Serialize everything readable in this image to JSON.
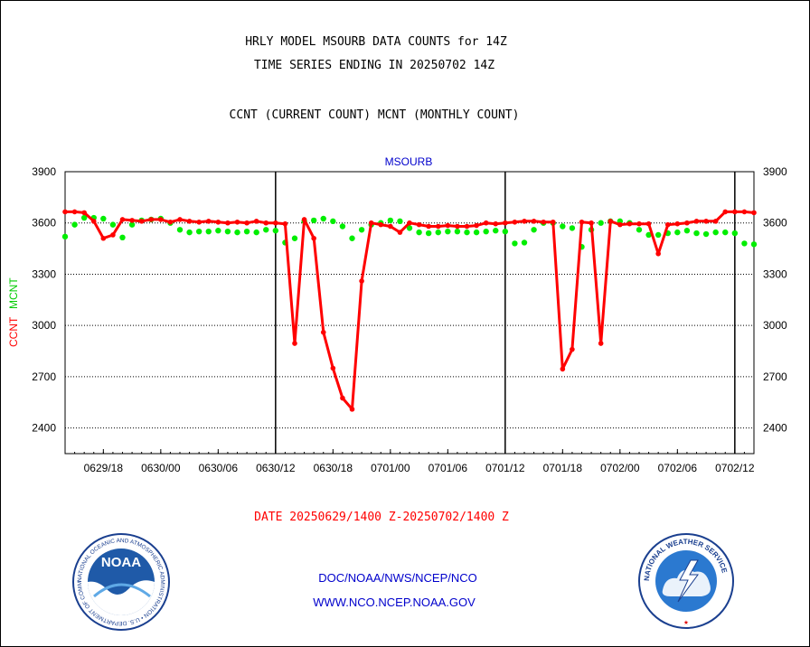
{
  "header": {
    "line1": "HRLY MODEL MSOURB DATA COUNTS for 14Z",
    "line2": "TIME SERIES ENDING IN 20250702 14Z",
    "line3": "CCNT (CURRENT COUNT) MCNT (MONTHLY COUNT)"
  },
  "footer": {
    "date_range": "DATE 20250629/1400 Z-20250702/1400 Z",
    "org": "DOC/NOAA/NWS/NCEP/NCO",
    "url": "WWW.NCO.NCEP.NOAA.GOV"
  },
  "logos": {
    "noaa_text": "NOAA",
    "noaa_ring": "NATIONAL OCEANIC AND ATMOSPHERIC ADMINISTRATION • U.S. DEPARTMENT OF COMMERCE •",
    "nws_ring": "NATIONAL WEATHER SERVICE"
  },
  "chart_data": {
    "type": "line",
    "title": "MSOURB",
    "ylabel_left": "CCNT",
    "ylabel_right": "MCNT",
    "ylim": [
      2250,
      3900
    ],
    "yticks": [
      2400,
      2700,
      3000,
      3300,
      3600,
      3900
    ],
    "xlim": [
      0,
      72
    ],
    "x_unit": "hours since 2025-06-29 14Z",
    "xtick_positions": [
      4,
      10,
      16,
      22,
      28,
      34,
      40,
      46,
      52,
      58,
      64,
      70
    ],
    "xtick_labels": [
      "0629/18",
      "0630/00",
      "0630/06",
      "0630/12",
      "0630/18",
      "0701/00",
      "0701/06",
      "0701/12",
      "0701/18",
      "0702/00",
      "0702/06",
      "0702/12"
    ],
    "day_boundaries": [
      22,
      46,
      70
    ],
    "grid": "horizontal dotted",
    "colors": {
      "ccnt": "#ff0000",
      "mcnt": "#00ee00",
      "title": "#0000cc",
      "axis": "#000000"
    },
    "series": [
      {
        "name": "CCNT",
        "color": "#ff0000",
        "points": [
          [
            0,
            3665
          ],
          [
            1,
            3665
          ],
          [
            2,
            3660
          ],
          [
            3,
            3610
          ],
          [
            4,
            3510
          ],
          [
            5,
            3530
          ],
          [
            6,
            3620
          ],
          [
            7,
            3615
          ],
          [
            8,
            3610
          ],
          [
            9,
            3620
          ],
          [
            10,
            3620
          ],
          [
            11,
            3605
          ],
          [
            12,
            3620
          ],
          [
            13,
            3610
          ],
          [
            14,
            3605
          ],
          [
            15,
            3610
          ],
          [
            16,
            3605
          ],
          [
            17,
            3600
          ],
          [
            18,
            3605
          ],
          [
            19,
            3600
          ],
          [
            20,
            3610
          ],
          [
            21,
            3600
          ],
          [
            22,
            3600
          ],
          [
            23,
            3595
          ],
          [
            24,
            2895
          ],
          [
            25,
            3620
          ],
          [
            26,
            3510
          ],
          [
            27,
            2960
          ],
          [
            28,
            2750
          ],
          [
            29,
            2575
          ],
          [
            30,
            2510
          ],
          [
            31,
            3260
          ],
          [
            32,
            3600
          ],
          [
            33,
            3590
          ],
          [
            34,
            3580
          ],
          [
            35,
            3545
          ],
          [
            36,
            3600
          ],
          [
            37,
            3590
          ],
          [
            38,
            3580
          ],
          [
            39,
            3580
          ],
          [
            40,
            3585
          ],
          [
            41,
            3580
          ],
          [
            42,
            3580
          ],
          [
            43,
            3585
          ],
          [
            44,
            3600
          ],
          [
            45,
            3595
          ],
          [
            46,
            3600
          ],
          [
            47,
            3605
          ],
          [
            48,
            3610
          ],
          [
            49,
            3610
          ],
          [
            50,
            3605
          ],
          [
            51,
            3605
          ],
          [
            52,
            2745
          ],
          [
            53,
            2860
          ],
          [
            54,
            3605
          ],
          [
            55,
            3600
          ],
          [
            56,
            2895
          ],
          [
            57,
            3610
          ],
          [
            58,
            3590
          ],
          [
            59,
            3595
          ],
          [
            60,
            3595
          ],
          [
            61,
            3595
          ],
          [
            62,
            3420
          ],
          [
            63,
            3590
          ],
          [
            64,
            3595
          ],
          [
            65,
            3600
          ],
          [
            66,
            3610
          ],
          [
            67,
            3610
          ],
          [
            68,
            3610
          ],
          [
            69,
            3665
          ],
          [
            70,
            3665
          ],
          [
            71,
            3665
          ],
          [
            72,
            3660
          ]
        ]
      },
      {
        "name": "MCNT",
        "color": "#00ee00",
        "points": [
          [
            0,
            3520
          ],
          [
            1,
            3590
          ],
          [
            2,
            3630
          ],
          [
            3,
            3630
          ],
          [
            4,
            3625
          ],
          [
            5,
            3590
          ],
          [
            6,
            3515
          ],
          [
            7,
            3590
          ],
          [
            8,
            3615
          ],
          [
            9,
            3620
          ],
          [
            10,
            3625
          ],
          [
            11,
            3600
          ],
          [
            12,
            3560
          ],
          [
            13,
            3545
          ],
          [
            14,
            3550
          ],
          [
            15,
            3550
          ],
          [
            16,
            3555
          ],
          [
            17,
            3550
          ],
          [
            18,
            3545
          ],
          [
            19,
            3550
          ],
          [
            20,
            3545
          ],
          [
            21,
            3560
          ],
          [
            22,
            3555
          ],
          [
            23,
            3485
          ],
          [
            24,
            3510
          ],
          [
            25,
            3610
          ],
          [
            26,
            3615
          ],
          [
            27,
            3625
          ],
          [
            28,
            3610
          ],
          [
            29,
            3580
          ],
          [
            30,
            3510
          ],
          [
            31,
            3560
          ],
          [
            32,
            3590
          ],
          [
            33,
            3600
          ],
          [
            34,
            3615
          ],
          [
            35,
            3610
          ],
          [
            36,
            3570
          ],
          [
            37,
            3545
          ],
          [
            38,
            3540
          ],
          [
            39,
            3545
          ],
          [
            40,
            3550
          ],
          [
            41,
            3550
          ],
          [
            42,
            3545
          ],
          [
            43,
            3545
          ],
          [
            44,
            3550
          ],
          [
            45,
            3555
          ],
          [
            46,
            3550
          ],
          [
            47,
            3480
          ],
          [
            48,
            3485
          ],
          [
            49,
            3560
          ],
          [
            50,
            3600
          ],
          [
            51,
            3600
          ],
          [
            52,
            3580
          ],
          [
            53,
            3570
          ],
          [
            54,
            3460
          ],
          [
            55,
            3560
          ],
          [
            56,
            3600
          ],
          [
            57,
            3610
          ],
          [
            58,
            3610
          ],
          [
            59,
            3600
          ],
          [
            60,
            3560
          ],
          [
            61,
            3530
          ],
          [
            62,
            3530
          ],
          [
            63,
            3540
          ],
          [
            64,
            3545
          ],
          [
            65,
            3555
          ],
          [
            66,
            3540
          ],
          [
            67,
            3535
          ],
          [
            68,
            3545
          ],
          [
            69,
            3545
          ],
          [
            70,
            3540
          ],
          [
            71,
            3480
          ],
          [
            72,
            3475
          ]
        ]
      }
    ]
  }
}
